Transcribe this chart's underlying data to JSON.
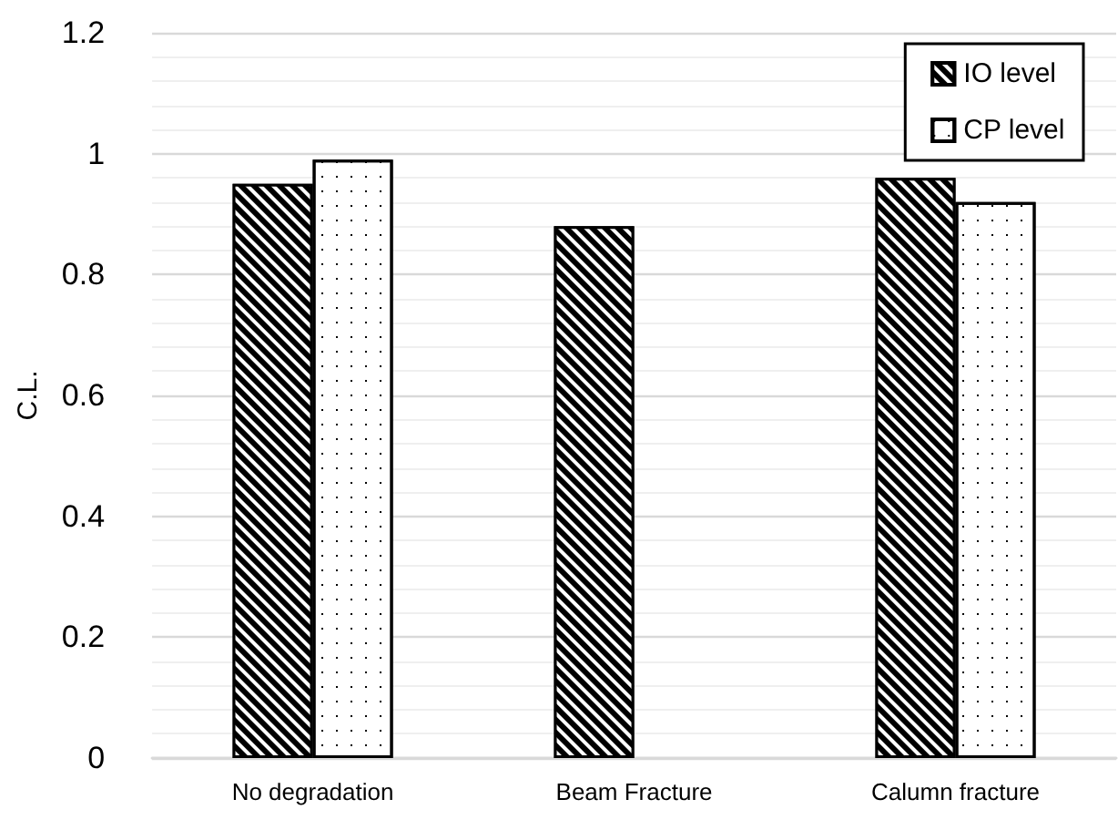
{
  "chart_data": {
    "type": "bar",
    "ylabel": "C.L.",
    "categories": [
      "No degradation",
      "Beam Fracture",
      "Calumn fracture"
    ],
    "series": [
      {
        "name": "IO level",
        "color": "#000000",
        "values": [
          0.95,
          0.88,
          0.96
        ]
      },
      {
        "name": "CP level",
        "color": "#ffffff",
        "values": [
          0.99,
          0,
          0.92
        ]
      }
    ],
    "ylim": [
      0,
      1.2
    ],
    "yticks": [
      0,
      0.2,
      0.4,
      0.6,
      0.8,
      1,
      1.2
    ],
    "grid": "y",
    "legend": "top right"
  }
}
